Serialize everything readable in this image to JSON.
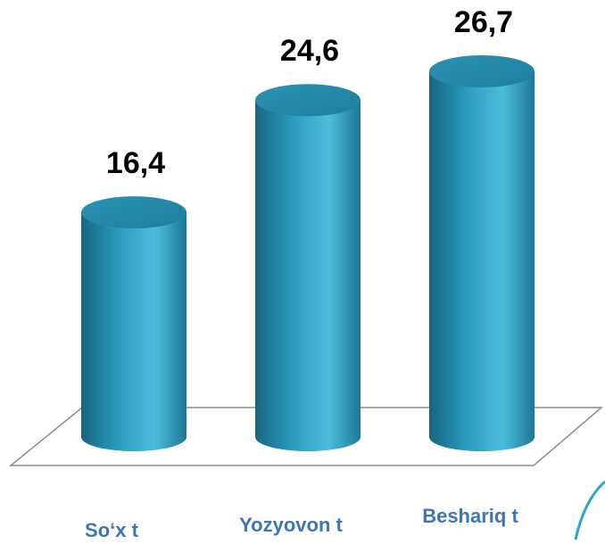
{
  "chart_data": {
    "type": "bar",
    "categories": [
      "So‘x t",
      "Yozyovon t",
      "Beshariq t"
    ],
    "values": [
      16.4,
      24.6,
      26.7
    ],
    "value_labels": [
      "16,4",
      "24,6",
      "26,7"
    ],
    "color": "#2a9bbd"
  }
}
